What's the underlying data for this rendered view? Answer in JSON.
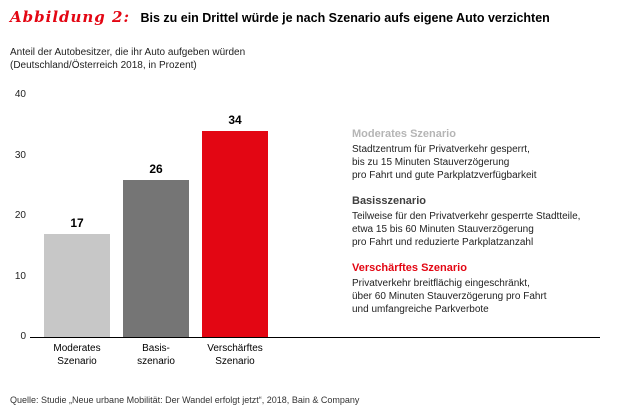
{
  "header": {
    "figure_label": "Abbildung 2:",
    "title": "Bis zu ein Drittel würde je nach Szenario aufs eigene Auto verzichten",
    "subtitle": "Anteil der Autobesitzer, die ihr Auto aufgeben würden\n(Deutschland/Österreich 2018, in Prozent)"
  },
  "colors": {
    "accent_red": "#e30613",
    "bar_light_gray": "#c7c7c7",
    "bar_dark_gray": "#757575",
    "legend_gray": "#b5b5b5",
    "legend_dark": "#3f3f3f"
  },
  "chart_data": {
    "type": "bar",
    "title": "Bis zu ein Drittel würde je nach Szenario aufs eigene Auto verzichten",
    "subtitle": "Anteil der Autobesitzer, die ihr Auto aufgeben würden (Deutschland/Österreich 2018, in Prozent)",
    "categories": [
      "Moderates\nSzenario",
      "Basis-\nszenario",
      "Verschärftes\nSzenario"
    ],
    "values": [
      17,
      26,
      34
    ],
    "bar_colors": [
      "#c7c7c7",
      "#757575",
      "#e30613"
    ],
    "xlabel": "",
    "ylabel": "",
    "ylim": [
      0,
      40
    ],
    "yticks": [
      0,
      10,
      20,
      30,
      40
    ],
    "grid": false,
    "legend_position": "right"
  },
  "legend": {
    "entries": [
      {
        "title": "Moderates Szenario",
        "color": "#b5b5b5",
        "text": "Stadtzentrum für Privatverkehr gesperrt,\nbis zu 15 Minuten Stauverzögerung\npro Fahrt und gute Parkplatzverfügbarkeit"
      },
      {
        "title": "Basisszenario",
        "color": "#3f3f3f",
        "text": "Teilweise für den Privatverkehr gesperrte Stadtteile,\netwa 15 bis 60 Minuten Stauverzögerung\npro Fahrt und reduzierte Parkplatzanzahl"
      },
      {
        "title": "Verschärftes Szenario",
        "color": "#e30613",
        "text": "Privatverkehr breitflächig eingeschränkt,\nüber 60 Minuten Stauverzögerung pro Fahrt\nund umfangreiche Parkverbote"
      }
    ]
  },
  "source": "Quelle: Studie „Neue urbane Mobilität: Der Wandel erfolgt jetzt“, 2018, Bain & Company"
}
